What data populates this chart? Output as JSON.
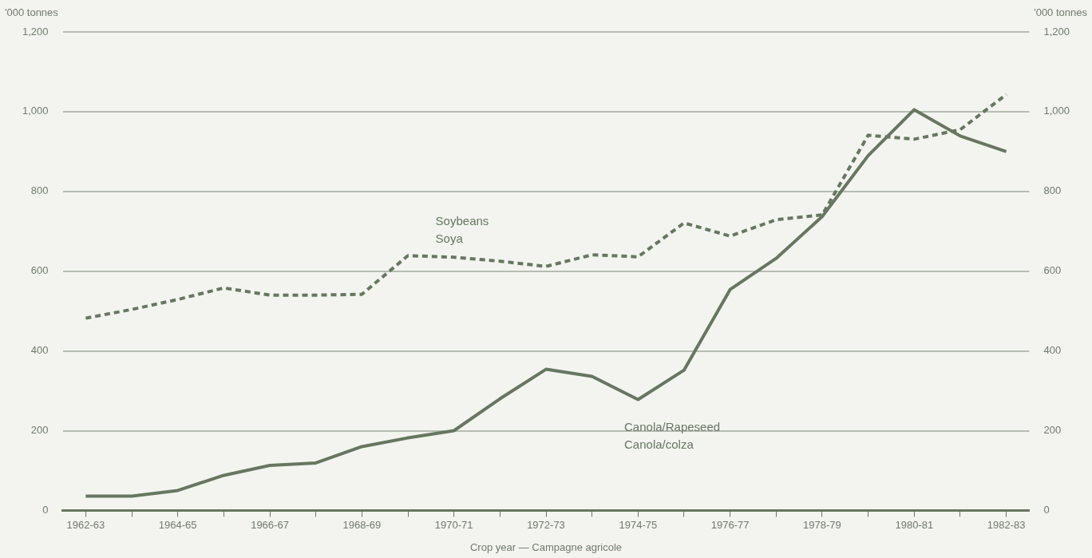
{
  "chart_data": {
    "type": "line",
    "xlabel": "Crop year — Campagne agricole",
    "ylabel": "'000 tonnes",
    "y2label": "'000 tonnes",
    "categories": [
      "1962-63",
      null,
      "1964-65",
      null,
      "1966-67",
      null,
      "1968-69",
      null,
      "1970-71",
      null,
      "1972-73",
      null,
      "1974-75",
      null,
      "1976-77",
      null,
      "1978-79",
      null,
      "1980-81",
      null,
      "1982-83"
    ],
    "series": [
      {
        "name": "Soybeans\nSoya",
        "color": "#66775f",
        "line_style": "dashed",
        "values": [
          482,
          504,
          529,
          558,
          540,
          540,
          542,
          639,
          635,
          625,
          612,
          641,
          636,
          721,
          688,
          729,
          741,
          941,
          931,
          955,
          1043
        ]
      },
      {
        "name": "Canola/Rapeseed\nCanola/colza",
        "color": "#66775f",
        "line_style": "solid",
        "values": [
          36,
          36,
          50,
          88,
          113,
          119,
          160,
          182,
          200,
          280,
          354,
          336,
          278,
          352,
          554,
          632,
          737,
          890,
          1005,
          939,
          900
        ]
      }
    ],
    "ylim": [
      0,
      1200
    ],
    "yticks": [
      0,
      200,
      400,
      600,
      800,
      {
        "value": 1000,
        "label": "1,000"
      },
      {
        "value": 1200,
        "label": "1,200"
      }
    ],
    "y2lim": [
      0,
      1200
    ],
    "y2ticks": [
      0,
      200,
      400,
      600,
      800,
      {
        "value": 1000,
        "label": "1,000"
      },
      {
        "value": 1200,
        "label": "1,200"
      }
    ],
    "grid": "y",
    "legend": false
  }
}
